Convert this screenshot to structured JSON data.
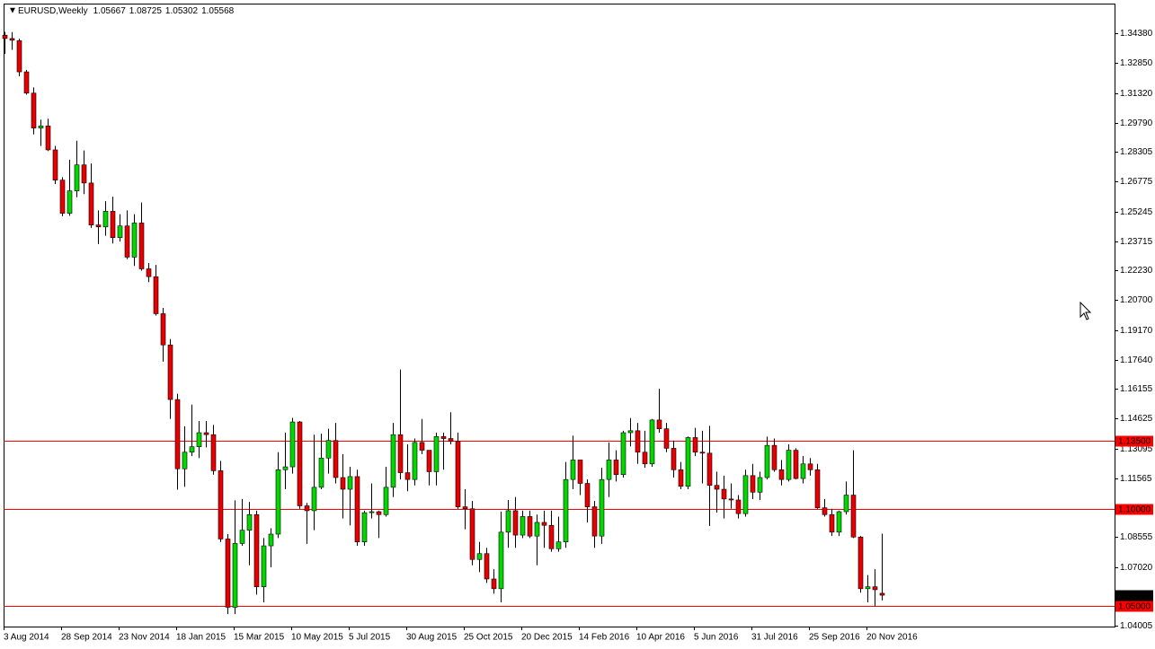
{
  "chart_data": {
    "type": "candlestick",
    "title": "EURUSD,Weekly",
    "categories": [
      "3 Aug 2014",
      null,
      null,
      null,
      null,
      null,
      null,
      null,
      "28 Sep 2014",
      null,
      null,
      null,
      null,
      null,
      null,
      null,
      "23 Nov 2014",
      null,
      null,
      null,
      null,
      null,
      null,
      null,
      "18 Jan 2015",
      null,
      null,
      null,
      null,
      null,
      null,
      null,
      "15 Mar 2015",
      null,
      null,
      null,
      null,
      null,
      null,
      null,
      "10 May 2015",
      null,
      null,
      null,
      null,
      null,
      null,
      null,
      "5 Jul 2015",
      null,
      null,
      null,
      null,
      null,
      null,
      null,
      "30 Aug 2015",
      null,
      null,
      null,
      null,
      null,
      null,
      null,
      "25 Oct 2015",
      null,
      null,
      null,
      null,
      null,
      null,
      null,
      "20 Dec 2015",
      null,
      null,
      null,
      null,
      null,
      null,
      null,
      "14 Feb 2016",
      null,
      null,
      null,
      null,
      null,
      null,
      null,
      "10 Apr 2016",
      null,
      null,
      null,
      null,
      null,
      null,
      null,
      "5 Jun 2016",
      null,
      null,
      null,
      null,
      null,
      null,
      null,
      "31 Jul 2016",
      null,
      null,
      null,
      null,
      null,
      null,
      null,
      "25 Sep 2016",
      null,
      null,
      null,
      null,
      null,
      null,
      null,
      "20 Nov 2016",
      null,
      null
    ],
    "open": [
      1.3428,
      1.3411,
      1.34,
      1.324,
      1.3131,
      1.2952,
      1.2963,
      1.284,
      1.2685,
      1.2515,
      1.263,
      1.2763,
      1.267,
      1.2455,
      1.2445,
      1.2525,
      1.239,
      1.245,
      1.229,
      1.2465,
      1.223,
      1.219,
      1.2,
      1.184,
      1.156,
      1.1205,
      1.129,
      1.1318,
      1.139,
      1.138,
      1.1195,
      1.0845,
      1.0495,
      1.0822,
      1.089,
      1.097,
      1.06,
      1.081,
      1.087,
      1.12,
      1.1215,
      1.1445,
      1.1015,
      1.099,
      1.111,
      1.126,
      1.135,
      1.116,
      1.11,
      1.1165,
      1.083,
      1.098,
      1.0985,
      1.097,
      1.111,
      1.138,
      1.1185,
      1.115,
      1.134,
      1.13,
      1.119,
      1.137,
      1.136,
      1.1345,
      1.101,
      1.1,
      1.074,
      1.077,
      1.064,
      1.059,
      1.088,
      1.099,
      1.0865,
      1.096,
      1.086,
      1.093,
      1.0915,
      1.0795,
      1.083,
      1.115,
      1.125,
      1.113,
      1.101,
      1.086,
      1.115,
      1.125,
      1.1175,
      1.139,
      1.14,
      1.129,
      1.123,
      1.1455,
      1.141,
      1.131,
      1.12,
      1.1115,
      1.1365,
      1.129,
      1.1285,
      1.112,
      1.11,
      1.105,
      1.1045,
      1.0975,
      1.117,
      1.1085,
      1.116,
      1.1325,
      1.12,
      1.115,
      1.13,
      1.1155,
      1.123,
      1.12,
      1.1005,
      1.097,
      1.088,
      1.0985,
      1.107,
      1.0855,
      1.059,
      1.06,
      1.05667
    ],
    "high": [
      1.3445,
      1.3444,
      1.341,
      1.325,
      1.316,
      1.2995,
      1.3,
      1.286,
      1.27,
      1.279,
      1.2887,
      1.2837,
      1.277,
      1.253,
      1.2577,
      1.26,
      1.251,
      1.253,
      1.251,
      1.257,
      1.226,
      1.225,
      1.203,
      1.187,
      1.159,
      1.1423,
      1.1534,
      1.145,
      1.145,
      1.143,
      1.1245,
      1.087,
      1.1043,
      1.105,
      1.1035,
      1.099,
      1.085,
      1.09,
      1.129,
      1.139,
      1.1466,
      1.145,
      1.103,
      1.138,
      1.1385,
      1.141,
      1.144,
      1.128,
      1.1215,
      1.12,
      1.099,
      1.113,
      1.099,
      1.1215,
      1.144,
      1.1714,
      1.133,
      1.136,
      1.146,
      1.13,
      1.139,
      1.139,
      1.1495,
      1.139,
      1.11,
      1.104,
      1.083,
      1.08,
      1.069,
      1.0985,
      1.1045,
      1.106,
      1.099,
      1.099,
      1.097,
      1.099,
      1.099,
      1.096,
      1.124,
      1.1375,
      1.125,
      1.115,
      1.104,
      1.121,
      1.134,
      1.13,
      1.14,
      1.1465,
      1.144,
      1.14,
      1.146,
      1.1615,
      1.144,
      1.135,
      1.124,
      1.137,
      1.1415,
      1.14,
      1.1425,
      1.119,
      1.117,
      1.113,
      1.107,
      1.12,
      1.123,
      1.119,
      1.137,
      1.136,
      1.125,
      1.133,
      1.131,
      1.127,
      1.126,
      1.123,
      1.105,
      1.1,
      1.099,
      1.114,
      1.13,
      1.086,
      1.066,
      1.069,
      1.08725
    ],
    "low": [
      1.3333,
      1.3353,
      1.3218,
      1.3123,
      1.2919,
      1.286,
      1.2834,
      1.2665,
      1.25,
      1.2502,
      1.2597,
      1.2613,
      1.244,
      1.2357,
      1.24,
      1.236,
      1.237,
      1.228,
      1.2245,
      1.222,
      1.2162,
      1.199,
      1.1754,
      1.146,
      1.1098,
      1.1113,
      1.127,
      1.126,
      1.1315,
      1.1175,
      1.083,
      1.046,
      1.046,
      1.081,
      1.071,
      1.056,
      1.052,
      1.07,
      1.085,
      1.11,
      1.118,
      1.1,
      1.082,
      1.089,
      1.11,
      1.118,
      1.113,
      1.095,
      1.0915,
      1.081,
      1.081,
      1.095,
      1.085,
      1.096,
      1.106,
      1.115,
      1.109,
      1.112,
      1.128,
      1.112,
      1.112,
      1.12,
      1.133,
      1.1,
      1.0895,
      1.071,
      1.0675,
      1.062,
      1.0565,
      1.052,
      1.08,
      1.08,
      1.085,
      1.085,
      1.071,
      1.08,
      1.078,
      1.078,
      1.08,
      1.11,
      1.107,
      1.093,
      1.08,
      1.082,
      1.106,
      1.114,
      1.116,
      1.132,
      1.123,
      1.121,
      1.1215,
      1.139,
      1.129,
      1.116,
      1.11,
      1.11,
      1.127,
      1.113,
      1.0912,
      1.098,
      1.095,
      1.1,
      1.095,
      1.096,
      1.105,
      1.1045,
      1.115,
      1.119,
      1.112,
      1.114,
      1.115,
      1.113,
      1.117,
      1.1,
      1.096,
      1.086,
      1.086,
      1.097,
      1.085,
      1.057,
      1.052,
      1.05,
      1.05302
    ],
    "close": [
      1.3411,
      1.3402,
      1.324,
      1.3131,
      1.2952,
      1.2963,
      1.284,
      1.2685,
      1.2515,
      1.263,
      1.2763,
      1.267,
      1.2455,
      1.2445,
      1.2525,
      1.239,
      1.245,
      1.229,
      1.2465,
      1.223,
      1.219,
      1.2,
      1.184,
      1.156,
      1.1205,
      1.129,
      1.1318,
      1.139,
      1.138,
      1.1195,
      1.0845,
      1.0495,
      1.0822,
      1.089,
      1.097,
      1.06,
      1.081,
      1.087,
      1.12,
      1.1215,
      1.1445,
      1.1015,
      1.099,
      1.111,
      1.126,
      1.135,
      1.116,
      1.11,
      1.1165,
      1.083,
      1.098,
      1.0985,
      1.097,
      1.111,
      1.138,
      1.1185,
      1.115,
      1.134,
      1.13,
      1.119,
      1.137,
      1.136,
      1.1345,
      1.101,
      1.1,
      1.074,
      1.077,
      1.064,
      1.059,
      1.088,
      1.099,
      1.0865,
      1.096,
      1.086,
      1.093,
      1.0915,
      1.0795,
      1.083,
      1.115,
      1.125,
      1.113,
      1.101,
      1.086,
      1.115,
      1.125,
      1.1175,
      1.139,
      1.14,
      1.129,
      1.123,
      1.1455,
      1.141,
      1.131,
      1.12,
      1.1115,
      1.1365,
      1.129,
      1.1285,
      1.112,
      1.11,
      1.105,
      1.1045,
      1.0975,
      1.117,
      1.1085,
      1.116,
      1.1325,
      1.12,
      1.115,
      1.13,
      1.1155,
      1.123,
      1.12,
      1.1005,
      1.097,
      1.088,
      1.0985,
      1.107,
      1.0855,
      1.059,
      1.06,
      1.0585,
      1.05568
    ],
    "up_color": "#00d800",
    "down_color": "#e80000",
    "wick_color": "#000000",
    "ylim": [
      1.0396,
      1.359
    ],
    "yticks": [
      {
        "value": 1.3438,
        "label": "1.34380"
      },
      {
        "value": 1.3285,
        "label": "1.32850"
      },
      {
        "value": 1.3132,
        "label": "1.31320"
      },
      {
        "value": 1.2979,
        "label": "1.29790"
      },
      1.28305,
      1.26775,
      1.25245,
      1.23715,
      {
        "value": 1.2223,
        "label": "1.22230"
      },
      {
        "value": 1.207,
        "label": "1.20700"
      },
      {
        "value": 1.1917,
        "label": "1.19170"
      },
      {
        "value": 1.1764,
        "label": "1.17640"
      },
      1.16155,
      1.14625,
      1.13095,
      1.11565,
      1.08555,
      {
        "value": 1.0702,
        "label": "1.07020"
      },
      1.04005
    ],
    "levels": [
      {
        "value": 1.135,
        "label": "1.13500"
      },
      {
        "value": 1.1,
        "label": "1.10000"
      },
      {
        "value": 1.05,
        "label": "1.05000"
      }
    ],
    "level_color": "#ff0000",
    "grid": false
  }
}
